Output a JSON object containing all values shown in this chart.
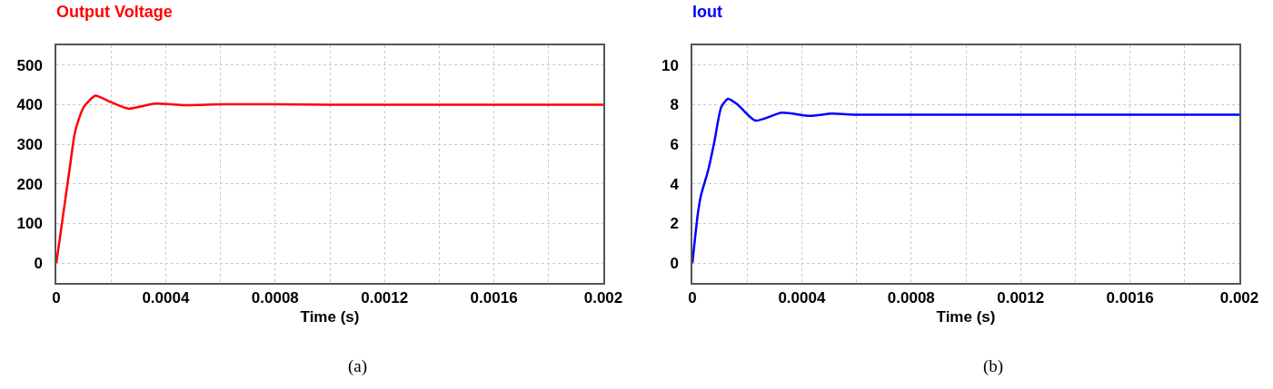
{
  "chart_data": [
    {
      "type": "line",
      "title": "Output Voltage",
      "xlabel": "Time (s)",
      "annotations": [
        "(a)"
      ],
      "grid": true,
      "marker": "none",
      "line_style": "solid",
      "xlim": [
        0,
        0.002
      ],
      "xticks": [
        0,
        {
          "value": 0.0002,
          "label": null
        },
        0.0004,
        {
          "value": 0.0006,
          "label": null
        },
        0.0008,
        {
          "value": 0.001,
          "label": null
        },
        0.0012,
        {
          "value": 0.0014,
          "label": null
        },
        0.0016,
        {
          "value": 0.0018,
          "label": null
        },
        0.002
      ],
      "ylim": [
        -50,
        550
      ],
      "yticks": [
        0,
        100,
        200,
        300,
        400,
        500
      ],
      "series": [
        {
          "color": "#ff0000",
          "x": [
            0,
            2e-05,
            4.8e-05,
            6.9e-05,
            0.0001,
            0.000143,
            0.000188,
            0.000264,
            0.00036,
            0.00047,
            0.0006,
            0.0008,
            0.001,
            0.0014,
            0.002
          ],
          "values": [
            0,
            98,
            235,
            333,
            394,
            423,
            410,
            390,
            403,
            399,
            401,
            401,
            400,
            400,
            400
          ]
        }
      ]
    },
    {
      "type": "line",
      "title": "Iout",
      "xlabel": "Time (s)",
      "annotations": [
        "(b)"
      ],
      "grid": true,
      "marker": "none",
      "line_style": "solid",
      "xlim": [
        0,
        0.002
      ],
      "xticks": [
        0,
        {
          "value": 0.0002,
          "label": null
        },
        0.0004,
        {
          "value": 0.0006,
          "label": null
        },
        0.0008,
        {
          "value": 0.001,
          "label": null
        },
        0.0012,
        {
          "value": 0.0014,
          "label": null
        },
        0.0016,
        {
          "value": 0.0018,
          "label": null
        },
        0.002
      ],
      "ylim": [
        -1,
        11
      ],
      "yticks": [
        0,
        2,
        4,
        6,
        8,
        10
      ],
      "series": [
        {
          "color": "#0000ff",
          "x": [
            0,
            2e-05,
            3.1e-05,
            5.8e-05,
            8e-05,
            0.000106,
            0.000131,
            0.000166,
            0.00023,
            0.000327,
            0.000429,
            0.00051,
            0.0006,
            0.001,
            0.002
          ],
          "values": [
            0,
            2.5,
            3.4,
            4.7,
            6.1,
            7.9,
            8.3,
            8.0,
            7.2,
            7.6,
            7.44,
            7.55,
            7.5,
            7.5,
            7.5
          ]
        }
      ]
    }
  ]
}
